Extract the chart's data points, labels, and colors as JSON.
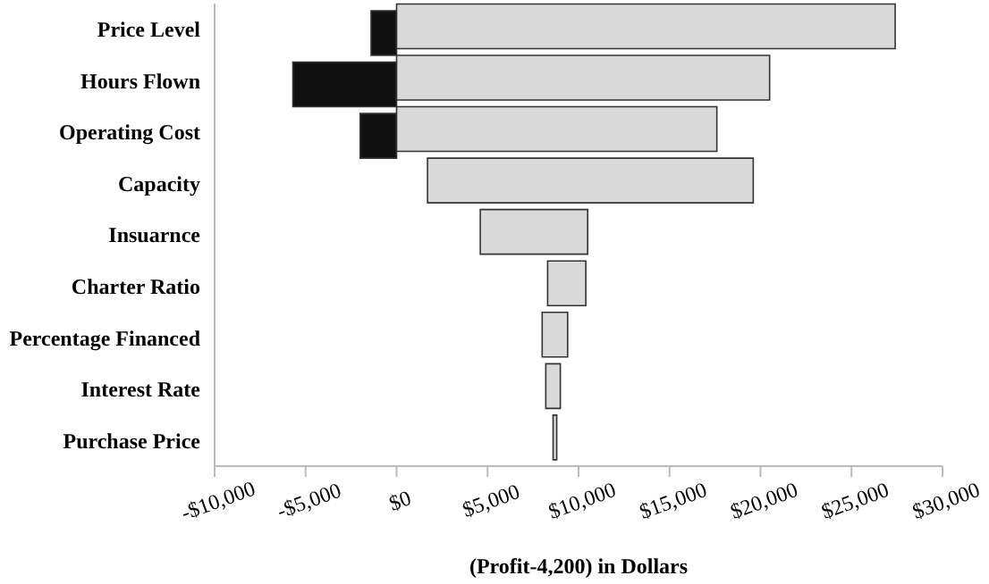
{
  "chart_data": {
    "type": "bar",
    "orientation": "horizontal",
    "xlabel": "(Profit-4,200) in Dollars",
    "categories": [
      "Price Level",
      "Hours Flown",
      "Operating Cost",
      "Capacity",
      "Insuarnce",
      "Charter Ratio",
      "Percentage Financed",
      "Interest Rate",
      "Purchase Price"
    ],
    "series": [
      {
        "color": "#111111",
        "base": [
          -1400,
          -5700,
          -2000,
          null,
          null,
          null,
          null,
          null,
          null
        ],
        "values": [
          1400,
          5700,
          2000,
          null,
          null,
          null,
          null,
          null,
          null
        ]
      },
      {
        "color": "#d9d9d9",
        "base": [
          0,
          0,
          0,
          1700,
          4600,
          8300,
          8000,
          8200,
          8600
        ],
        "values": [
          27400,
          20500,
          17600,
          17900,
          5900,
          2100,
          1400,
          800,
          200
        ]
      }
    ],
    "xlim": [
      -10000,
      30000
    ],
    "xticks": [
      {
        "value": -10000,
        "label": "-$10,000"
      },
      {
        "value": -5000,
        "label": "-$5,000"
      },
      {
        "value": 0,
        "label": "$0"
      },
      {
        "value": 5000,
        "label": "$5,000"
      },
      {
        "value": 10000,
        "label": "$10,000"
      },
      {
        "value": 15000,
        "label": "$15,000"
      },
      {
        "value": 20000,
        "label": "$20,000"
      },
      {
        "value": 25000,
        "label": "$25,000"
      },
      {
        "value": 30000,
        "label": "$30,000"
      }
    ],
    "grid": false,
    "legend": false
  }
}
